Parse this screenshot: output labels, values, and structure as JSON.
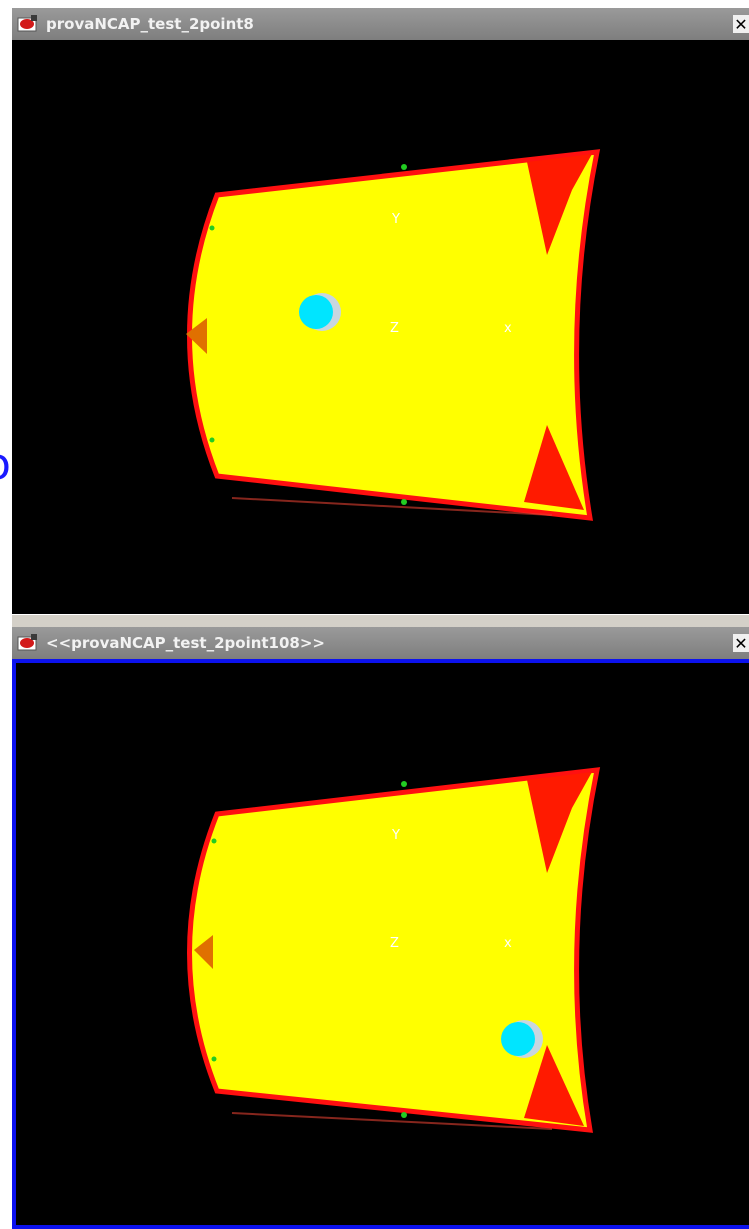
{
  "windows": [
    {
      "title": "provaNCAP_test_2point8",
      "close_symbol": "✕",
      "axes": {
        "y": "Y",
        "z": "Z",
        "x": "x"
      },
      "impact_point": "left-center"
    },
    {
      "title": "<<provaNCAP_test_2point108>>",
      "close_symbol": "✕",
      "axes": {
        "y": "Y",
        "z": "Z",
        "x": "x"
      },
      "impact_point": "lower-right",
      "active": true
    }
  ],
  "colors": {
    "window_bg": "#000000",
    "titlebar": "#8c8c8c",
    "hood_fill": "#ffff00",
    "hood_outline": "#ff1010",
    "active_frame": "#0c12ee",
    "impactor": "#00e5ff",
    "marker": "#e07000",
    "node": "#22cc22"
  },
  "background_fragment": "o"
}
